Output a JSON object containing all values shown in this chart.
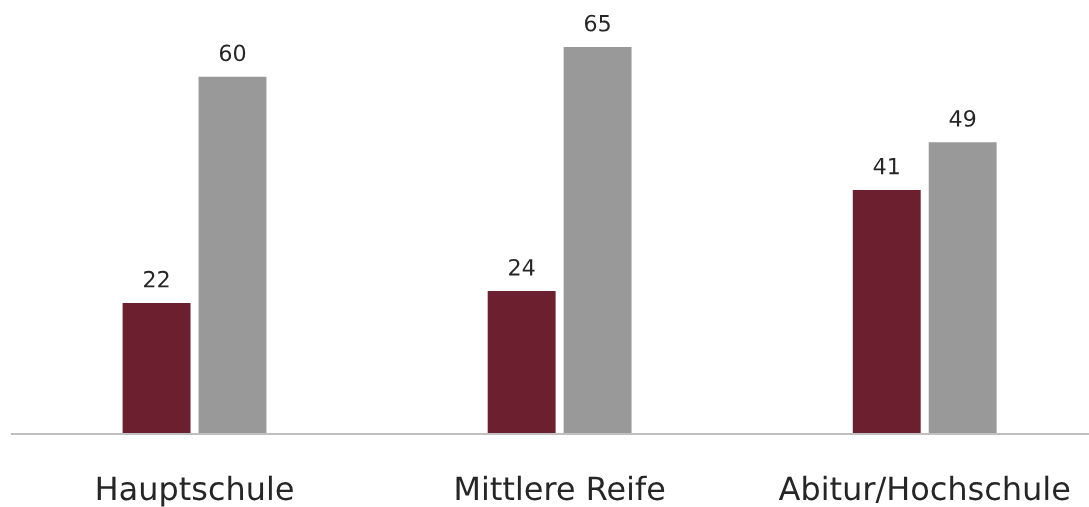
{
  "chart_data": {
    "type": "bar",
    "categories": [
      "Hauptschule",
      "Mittlere Reife",
      "Abitur/Hochschule"
    ],
    "series": [
      {
        "color": "#6b1f2f",
        "values": [
          22,
          24,
          41
        ]
      },
      {
        "color": "#999999",
        "values": [
          60,
          65,
          49
        ]
      }
    ],
    "data_labels": true,
    "grid": false,
    "legend": false,
    "tick_labels": "x"
  }
}
